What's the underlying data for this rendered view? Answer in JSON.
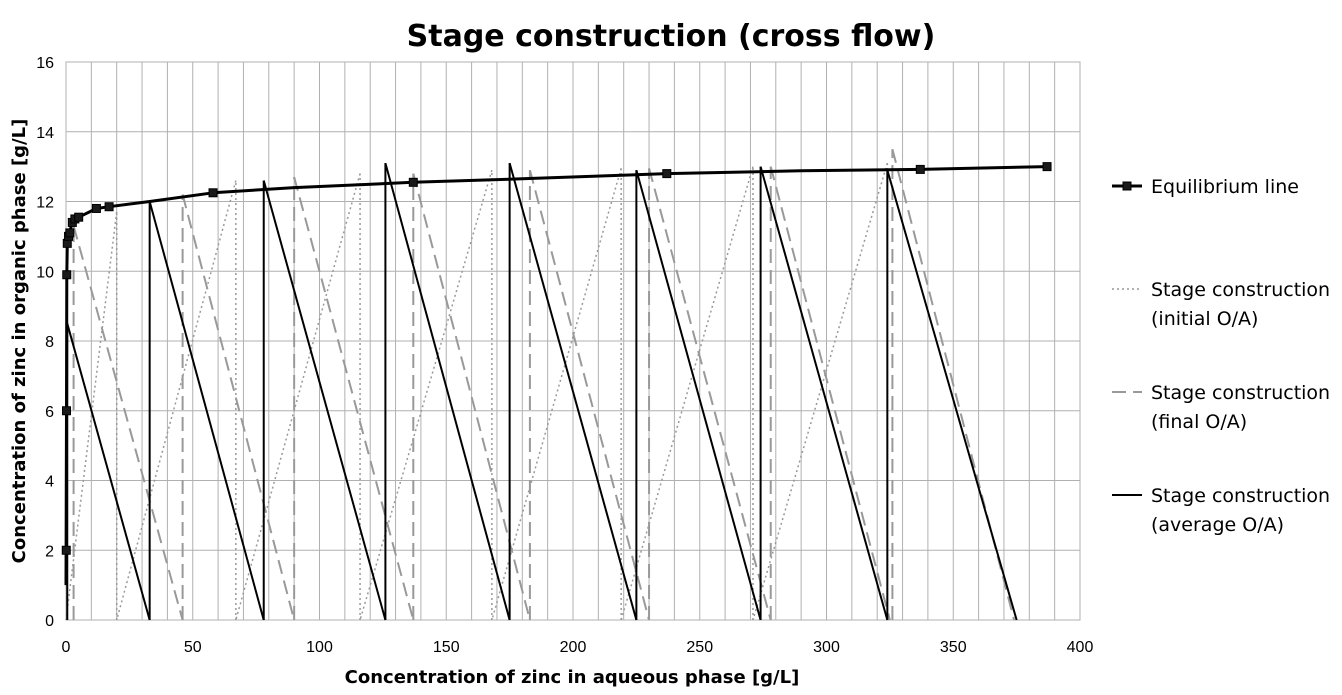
{
  "chart_data": {
    "type": "line",
    "title": "Stage construction (cross flow)",
    "xlabel": "Concentration of zinc in aqueous phase [g/L]",
    "ylabel": "Concentration of zinc in organic phase [g/L]",
    "xlim": [
      0,
      400
    ],
    "ylim": [
      0,
      16
    ],
    "x_major_step": 50,
    "x_minor_step": 10,
    "y_major_step": 2,
    "grid": true,
    "legend_position": "right",
    "series": [
      {
        "name": "Equilibrium line",
        "style": "solid-markers",
        "color": "#000000",
        "points": [
          [
            0.1,
            2.0
          ],
          [
            0.2,
            6.0
          ],
          [
            0.3,
            9.9
          ],
          [
            0.5,
            10.8
          ],
          [
            1,
            11.0
          ],
          [
            1.5,
            11.1
          ],
          [
            2.5,
            11.4
          ],
          [
            3.5,
            11.5
          ],
          [
            5,
            11.55
          ],
          [
            12,
            11.8
          ],
          [
            17,
            11.85
          ],
          [
            58,
            12.25
          ],
          [
            137,
            12.55
          ],
          [
            237,
            12.8
          ],
          [
            337,
            12.92
          ],
          [
            387,
            13.0
          ]
        ],
        "curve": [
          [
            0,
            1.0
          ],
          [
            0.2,
            6.0
          ],
          [
            0.3,
            9.9
          ],
          [
            0.5,
            10.8
          ],
          [
            1,
            11.0
          ],
          [
            2.5,
            11.4
          ],
          [
            5,
            11.55
          ],
          [
            12,
            11.8
          ],
          [
            17,
            11.85
          ],
          [
            33,
            12.0
          ],
          [
            58,
            12.25
          ],
          [
            90,
            12.4
          ],
          [
            137,
            12.55
          ],
          [
            180,
            12.65
          ],
          [
            237,
            12.8
          ],
          [
            290,
            12.88
          ],
          [
            337,
            12.92
          ],
          [
            387,
            13.0
          ]
        ]
      },
      {
        "name": "Stage construction\n(initial O/A)",
        "style": "dotted",
        "color": "#999999",
        "segments": [
          [
            [
              20,
              0
            ],
            [
              20,
              11.7
            ]
          ],
          [
            [
              20,
              11.7
            ],
            [
              0,
              0
            ]
          ],
          [
            [
              67,
              0
            ],
            [
              67,
              12.6
            ]
          ],
          [
            [
              67,
              12.6
            ],
            [
              20,
              0
            ]
          ],
          [
            [
              116,
              0
            ],
            [
              116,
              12.8
            ]
          ],
          [
            [
              116,
              12.8
            ],
            [
              67,
              0
            ]
          ],
          [
            [
              168,
              0
            ],
            [
              168,
              12.9
            ]
          ],
          [
            [
              168,
              12.9
            ],
            [
              116,
              0
            ]
          ],
          [
            [
              219,
              0
            ],
            [
              219,
              12.95
            ]
          ],
          [
            [
              219,
              12.95
            ],
            [
              168,
              0
            ]
          ],
          [
            [
              271,
              0
            ],
            [
              271,
              13.0
            ]
          ],
          [
            [
              271,
              13.0
            ],
            [
              219,
              0
            ]
          ],
          [
            [
              324,
              0
            ],
            [
              324,
              13.1
            ]
          ],
          [
            [
              324,
              13.1
            ],
            [
              271,
              0
            ]
          ]
        ]
      },
      {
        "name": "Stage construction\n(final O/A)",
        "style": "dashed",
        "color": "#999999",
        "segments": [
          [
            [
              3,
              0
            ],
            [
              3,
              11.3
            ]
          ],
          [
            [
              3,
              11.3
            ],
            [
              46,
              0
            ]
          ],
          [
            [
              46,
              0
            ],
            [
              46,
              12.2
            ]
          ],
          [
            [
              46,
              12.2
            ],
            [
              90,
              0
            ]
          ],
          [
            [
              90,
              0
            ],
            [
              90,
              12.7
            ]
          ],
          [
            [
              90,
              12.7
            ],
            [
              137,
              0
            ]
          ],
          [
            [
              137,
              0
            ],
            [
              137,
              12.8
            ]
          ],
          [
            [
              137,
              12.8
            ],
            [
              183,
              0
            ]
          ],
          [
            [
              183,
              0
            ],
            [
              183,
              12.9
            ]
          ],
          [
            [
              183,
              12.9
            ],
            [
              230,
              0
            ]
          ],
          [
            [
              230,
              0
            ],
            [
              230,
              12.95
            ]
          ],
          [
            [
              230,
              12.95
            ],
            [
              278,
              0
            ]
          ],
          [
            [
              278,
              0
            ],
            [
              278,
              13.0
            ]
          ],
          [
            [
              278,
              13.0
            ],
            [
              325,
              0
            ]
          ],
          [
            [
              326,
              0
            ],
            [
              326,
              13.5
            ]
          ],
          [
            [
              326,
              13.5
            ],
            [
              374,
              0
            ]
          ]
        ]
      },
      {
        "name": "Stage construction\n(average O/A)",
        "style": "solid",
        "color": "#000000",
        "segments": [
          [
            [
              0.5,
              0
            ],
            [
              0.5,
              8.5
            ]
          ],
          [
            [
              0.5,
              8.5
            ],
            [
              33,
              0
            ]
          ],
          [
            [
              33,
              0
            ],
            [
              33,
              12.0
            ]
          ],
          [
            [
              33,
              12.0
            ],
            [
              78,
              0
            ]
          ],
          [
            [
              78,
              0
            ],
            [
              78,
              12.6
            ]
          ],
          [
            [
              78,
              12.6
            ],
            [
              126,
              0
            ]
          ],
          [
            [
              126,
              0
            ],
            [
              126,
              13.1
            ]
          ],
          [
            [
              126,
              13.1
            ],
            [
              175,
              0
            ]
          ],
          [
            [
              175,
              0
            ],
            [
              175,
              13.1
            ]
          ],
          [
            [
              175,
              13.1
            ],
            [
              225,
              0
            ]
          ],
          [
            [
              225,
              0
            ],
            [
              225,
              12.9
            ]
          ],
          [
            [
              225,
              12.9
            ],
            [
              274,
              0
            ]
          ],
          [
            [
              274,
              0
            ],
            [
              274,
              13.0
            ]
          ],
          [
            [
              274,
              13.0
            ],
            [
              324,
              0
            ]
          ],
          [
            [
              324,
              0
            ],
            [
              324,
              12.9
            ]
          ],
          [
            [
              324,
              12.9
            ],
            [
              375,
              0
            ]
          ]
        ]
      }
    ]
  }
}
